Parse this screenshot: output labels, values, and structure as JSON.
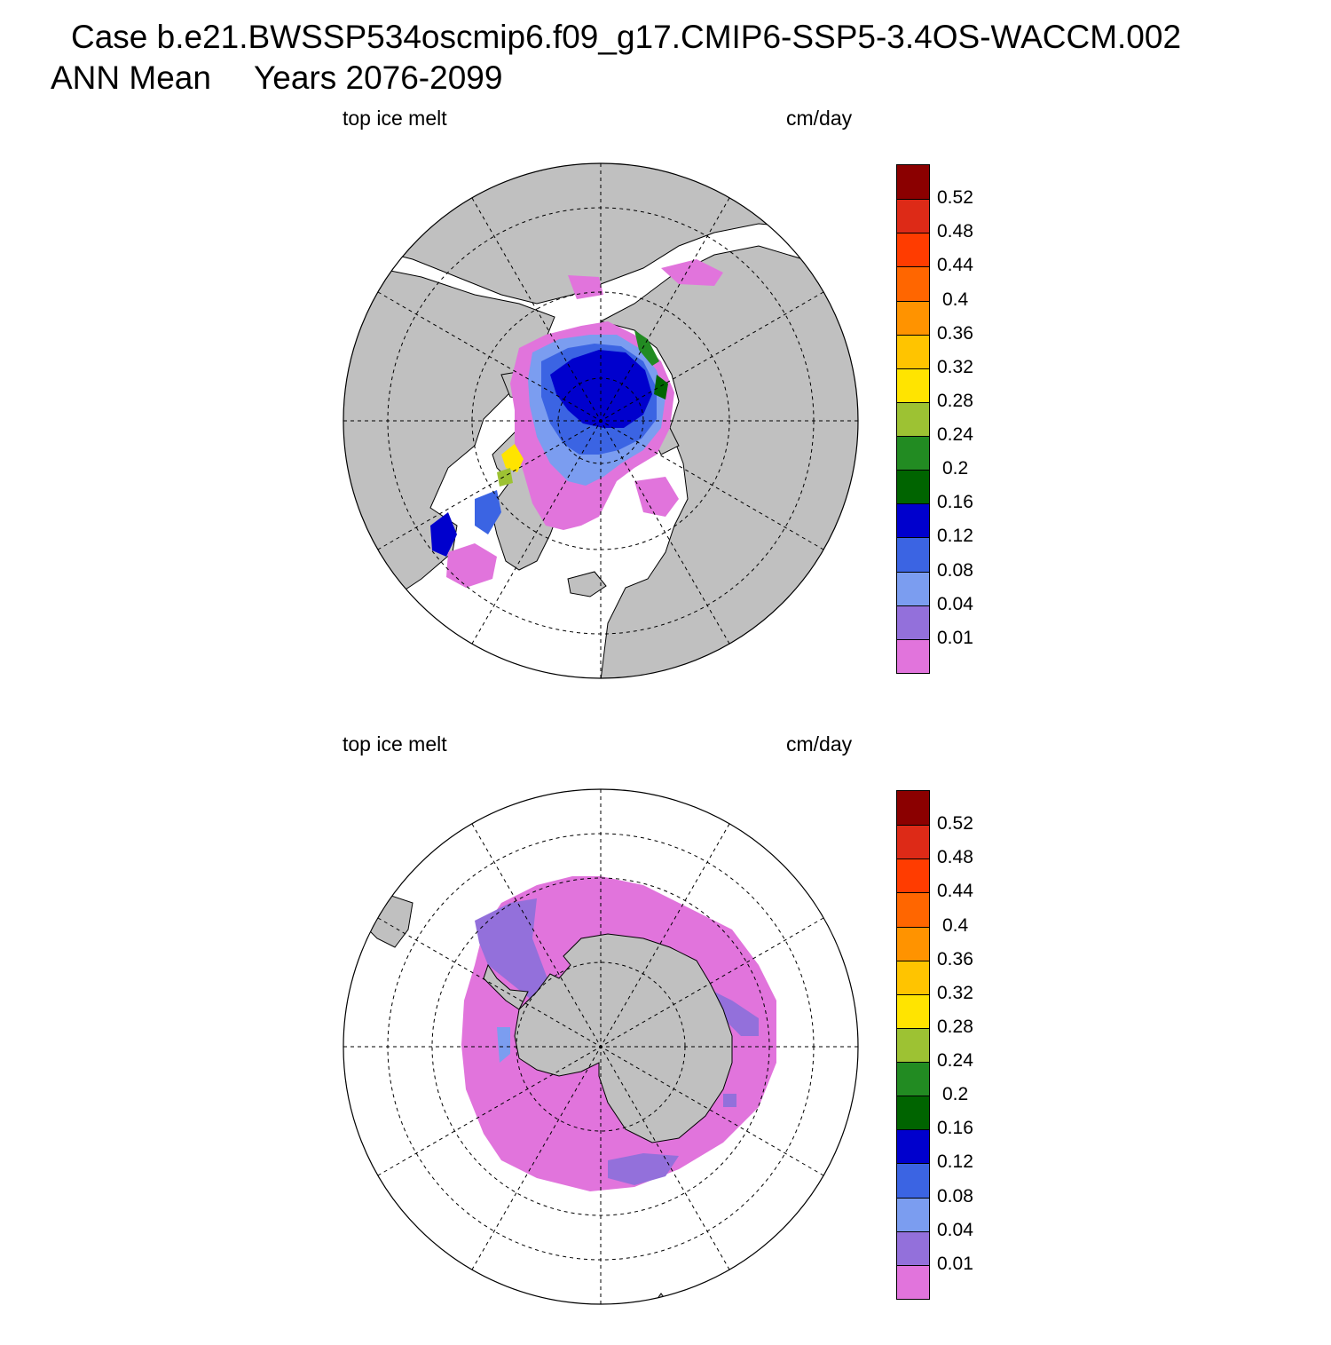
{
  "header": {
    "case_title": "Case b.e21.BWSSP534oscmip6.f09_g17.CMIP6-SSP5-3.4OS-WACCM.002",
    "season": "ANN Mean",
    "years": "Years 2076-2099"
  },
  "panels": [
    {
      "id": "north",
      "variable": "top ice melt",
      "units": "cm/day",
      "hemisphere": "north"
    },
    {
      "id": "south",
      "variable": "top ice melt",
      "units": "cm/day",
      "hemisphere": "south"
    }
  ],
  "colorbar": {
    "levels": [
      "0.52",
      "0.48",
      "0.44",
      "0.4",
      "0.36",
      "0.32",
      "0.28",
      "0.24",
      "0.2",
      "0.16",
      "0.12",
      "0.08",
      "0.04",
      "0.01"
    ],
    "colors_top_to_bottom": [
      "#8b0000",
      "#dd2a17",
      "#ff3c00",
      "#ff6600",
      "#ff9300",
      "#ffc400",
      "#ffe400",
      "#9dc233",
      "#228b22",
      "#006400",
      "#0000cd",
      "#3b64e3",
      "#7b9df0",
      "#9370db",
      "#e174dc"
    ]
  },
  "map_colors": {
    "land": "#c0c0c0",
    "ocean": "#ffffff"
  }
}
